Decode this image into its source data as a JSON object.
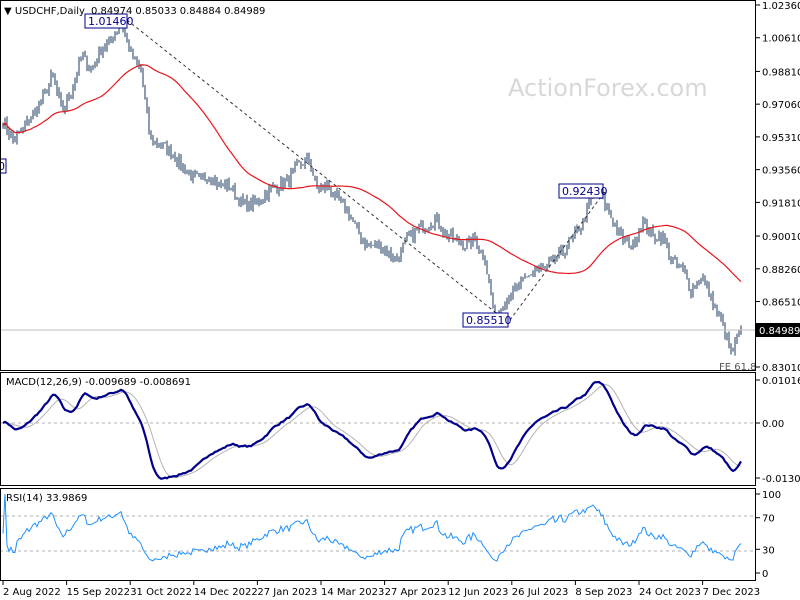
{
  "chart_data": [
    {
      "type": "ohlc",
      "header": {
        "symbol": "USDCHF,Daily",
        "open": "0.84974",
        "high": "0.85033",
        "low": "0.84884",
        "close": "0.84989"
      },
      "watermark": "ActionForex.com",
      "ylim": [
        0.8301,
        1.0236
      ],
      "y_ticks": [
        "1.02360",
        "1.00610",
        "0.98810",
        "0.97060",
        "0.95310",
        "0.93560",
        "0.91810",
        "0.90010",
        "0.88260",
        "0.86510",
        "0.83010"
      ],
      "current_price_label": "0.84989",
      "x_ticks": [
        "2 Aug 2022",
        "15 Sep 2022",
        "31 Oct 2022",
        "14 Dec 2022",
        "27 Jan 2023",
        "14 Mar 2023",
        "27 Apr 2023",
        "12 Jun 2023",
        "26 Jul 2023",
        "8 Sep 2023",
        "24 Oct 2023",
        "7 Dec 2023"
      ],
      "approx_weekly_closes": [
        0.962,
        0.951,
        0.957,
        0.965,
        0.973,
        0.986,
        0.967,
        0.978,
        0.997,
        0.989,
        1.0,
        1.005,
        1.0146,
        0.997,
        0.989,
        0.951,
        0.949,
        0.946,
        0.938,
        0.933,
        0.93,
        0.933,
        0.927,
        0.927,
        0.919,
        0.916,
        0.919,
        0.924,
        0.927,
        0.93,
        0.938,
        0.941,
        0.925,
        0.927,
        0.919,
        0.914,
        0.903,
        0.895,
        0.895,
        0.892,
        0.887,
        0.898,
        0.903,
        0.906,
        0.909,
        0.901,
        0.898,
        0.895,
        0.898,
        0.887,
        0.8551,
        0.866,
        0.871,
        0.876,
        0.882,
        0.882,
        0.887,
        0.892,
        0.9,
        0.908,
        0.9243,
        0.919,
        0.908,
        0.898,
        0.895,
        0.908,
        0.9,
        0.9,
        0.887,
        0.882,
        0.871,
        0.879,
        0.866,
        0.855,
        0.8365,
        0.84989
      ],
      "moving_average": {
        "color": "#e8141c"
      },
      "bar_color": "#1b3a5c",
      "annotations": [
        {
          "label": "1.01460"
        },
        {
          "label": "0.92430"
        },
        {
          "label": "0.85510"
        },
        {
          "label": "0"
        },
        {
          "label": "FE 61.8"
        }
      ]
    },
    {
      "type": "line",
      "title": "MACD(12,26,9) -0.009689 -0.008691",
      "ylim": [
        -0.013006,
        0.010166
      ],
      "y_ticks": [
        "0.010166",
        "0.00",
        "-0.013006"
      ],
      "series_colors": {
        "macd": "#00008b",
        "signal": "#b4b4b4"
      }
    },
    {
      "type": "line",
      "title": "RSI(14) 33.9869",
      "ylim": [
        0,
        100
      ],
      "y_ticks": [
        "100",
        "70",
        "30",
        "0"
      ],
      "levels": [
        70,
        30
      ],
      "color": "#1e90ff"
    }
  ]
}
